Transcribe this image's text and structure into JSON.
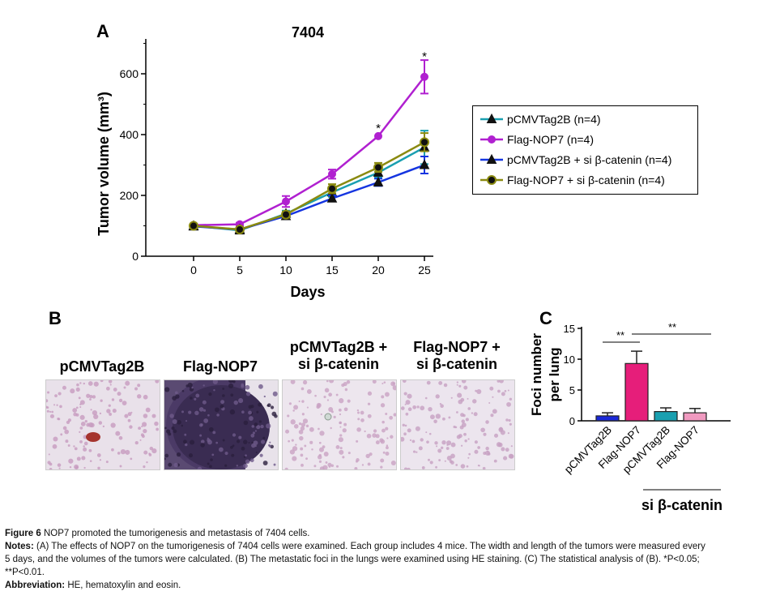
{
  "panels": {
    "a": "A",
    "b": "B",
    "c": "C"
  },
  "photos": [
    {
      "label_line1": "pCMVTag2B",
      "label_line2": ""
    },
    {
      "label_line1": "Flag-NOP7",
      "label_line2": ""
    },
    {
      "label_line1": "pCMVTag2B +",
      "label_line2": "si β-catenin"
    },
    {
      "label_line1": "Flag-NOP7 +",
      "label_line2": "si β-catenin"
    }
  ],
  "chart_data": [
    {
      "type": "line",
      "title": "7404",
      "xlabel": "Days",
      "ylabel": "Tumor volume (mm³)",
      "x": [
        0,
        5,
        10,
        15,
        20,
        25
      ],
      "xticks": [
        "0",
        "5",
        "10",
        "15",
        "20",
        "25"
      ],
      "yticks": [
        "0",
        "200",
        "400",
        "600"
      ],
      "ylim": [
        0,
        700
      ],
      "series": [
        {
          "name": "pCMVTag2B (n=4)",
          "marker": "triangle",
          "color": "#1a9fb0",
          "values": [
            100,
            85,
            140,
            210,
            275,
            358
          ],
          "errors": [
            0,
            5,
            10,
            15,
            15,
            55
          ]
        },
        {
          "name": "Flag-NOP7 (n=4)",
          "marker": "circle",
          "color": "#b020d0",
          "values": [
            102,
            105,
            180,
            270,
            395,
            590
          ],
          "errors": [
            0,
            5,
            18,
            15,
            0,
            55
          ]
        },
        {
          "name": "pCMVTag2B + si β-catenin (n=4)",
          "marker": "triangle",
          "color": "#1535e0",
          "values": [
            98,
            88,
            132,
            190,
            243,
            300
          ],
          "errors": [
            0,
            5,
            8,
            10,
            12,
            28
          ]
        },
        {
          "name": "Flag-NOP7 + si β-catenin (n=4)",
          "marker": "circle-dark",
          "color": "#8a8a10",
          "values": [
            100,
            88,
            137,
            222,
            292,
            375
          ],
          "errors": [
            0,
            5,
            10,
            15,
            15,
            30
          ]
        }
      ],
      "annotations": [
        {
          "text": "*",
          "x": 20,
          "y": 430
        },
        {
          "text": "*",
          "x": 25,
          "y": 665
        }
      ],
      "legend_position": "right",
      "grid": false
    },
    {
      "type": "bar",
      "ylabel": "Foci number per lung",
      "ylabel_line1": "Foci number",
      "ylabel_line2": "per lung",
      "categories": [
        "pCMVTag2B",
        "Flag-NOP7",
        "pCMVTag2B",
        "Flag-NOP7"
      ],
      "values": [
        0.8,
        9.3,
        1.5,
        1.3
      ],
      "errors": [
        0.5,
        2.0,
        0.6,
        0.7
      ],
      "colors": [
        "#1a28d8",
        "#e61e7a",
        "#1aa0b0",
        "#f09ac0"
      ],
      "yticks": [
        "0",
        "5",
        "10",
        "15"
      ],
      "ylim": [
        0,
        15
      ],
      "group_label": "si β-catenin",
      "significance": [
        {
          "text": "**",
          "from": 0,
          "to": 1
        },
        {
          "text": "**",
          "from": 1,
          "to": 3
        }
      ]
    }
  ],
  "caption": {
    "figure_label": "Figure 6",
    "figure_title": "NOP7 promoted the tumorigenesis and metastasis of 7404 cells.",
    "notes_label": "Notes:",
    "notes_line1": "(A) The effects of NOP7 on the tumorigenesis of 7404 cells were examined. Each group includes 4 mice. The width and length of the tumors were measured every",
    "notes_line2": "5 days, and the volumes of the tumors were calculated. (B) The metastatic foci in the lungs were examined using HE staining. (C) The statistical analysis of (B). *P<0.05;",
    "notes_line3": "**P<0.01.",
    "abbrev_label": "Abbreviation:",
    "abbrev_text": "HE, hematoxylin and eosin."
  }
}
